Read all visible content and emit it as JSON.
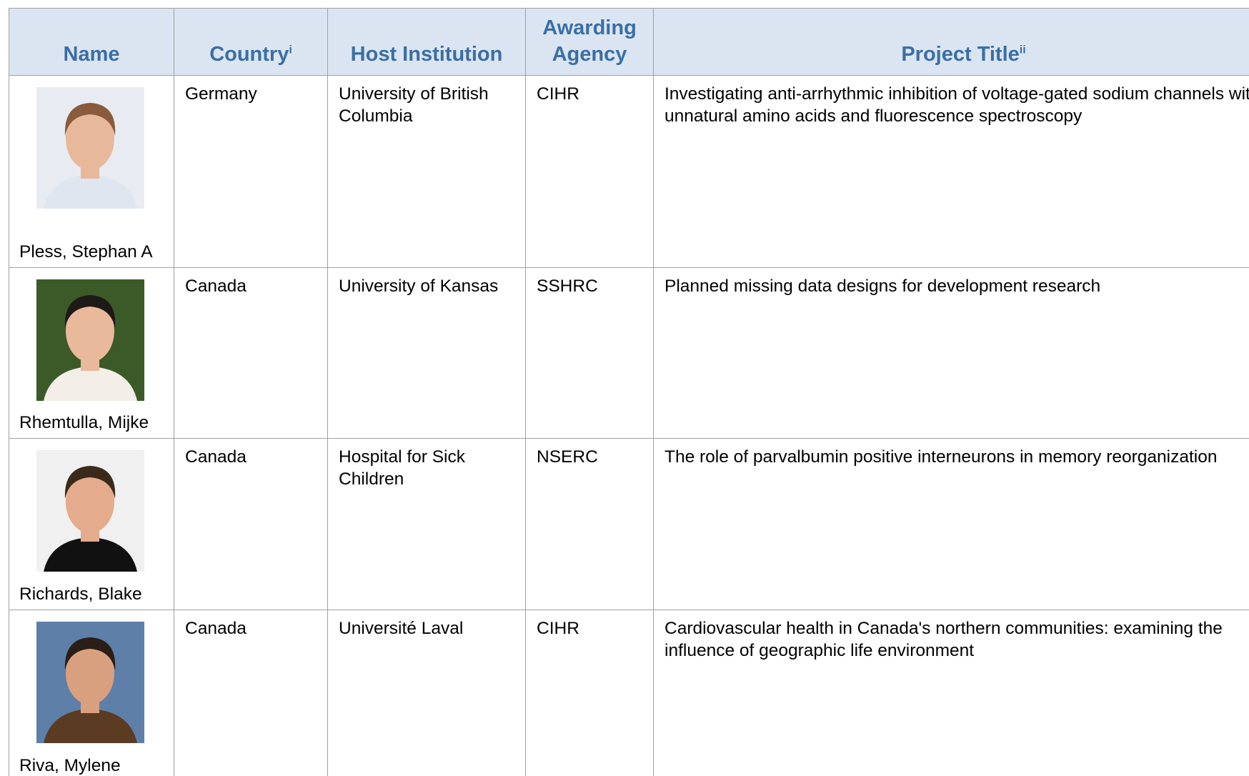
{
  "table": {
    "headers": [
      {
        "text": "Name"
      },
      {
        "text": "Country",
        "note": "i"
      },
      {
        "text": "Host Institution"
      },
      {
        "text": "Awarding Agency"
      },
      {
        "text": "Project Title",
        "note": "ii"
      }
    ],
    "rows": [
      [
        "Pless, Stephan A",
        "Germany",
        "University of British Columbia",
        "CIHR",
        "Investigating anti-arrhythmic inhibition of voltage-gated sodium channels with unnatural amino acids and fluorescence spectroscopy"
      ],
      [
        "Rhemtulla, Mijke",
        "Canada",
        "University of Kansas",
        "SSHRC",
        "Planned missing data designs for development research"
      ],
      [
        "Richards, Blake",
        "Canada",
        "Hospital for Sick Children",
        "NSERC",
        "The role of parvalbumin positive interneurons in memory reorganization"
      ],
      [
        "Riva, Mylene",
        "Canada",
        "Université Laval",
        "CIHR",
        "Cardiovascular health in Canada's northern communities: examining the influence of geographic life environment"
      ]
    ]
  }
}
